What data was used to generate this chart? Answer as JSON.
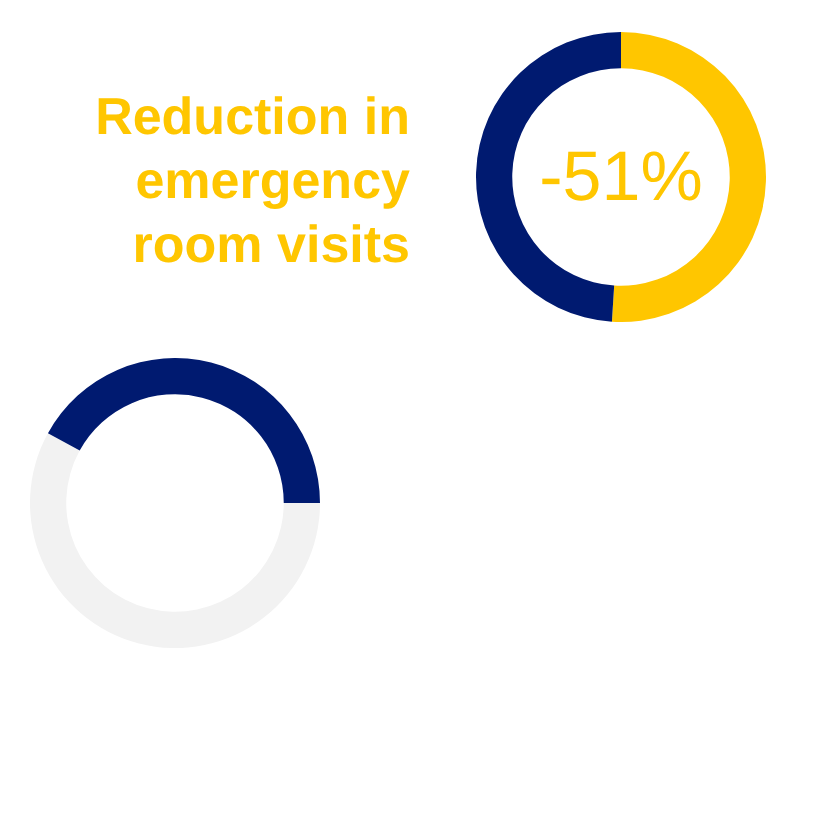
{
  "chart_data": [
    {
      "type": "donut",
      "title": "Reduction in emergency room visits",
      "categories": [
        null,
        null
      ],
      "values": [
        51,
        49
      ],
      "colors": [
        "#ffc600",
        "#001a70"
      ],
      "annotations": [
        "-51%"
      ]
    },
    {
      "type": "donut",
      "categories": [
        null,
        null
      ],
      "values": [
        58,
        42
      ],
      "colors": [
        "#f2f2f2",
        "#001a70"
      ]
    }
  ]
}
